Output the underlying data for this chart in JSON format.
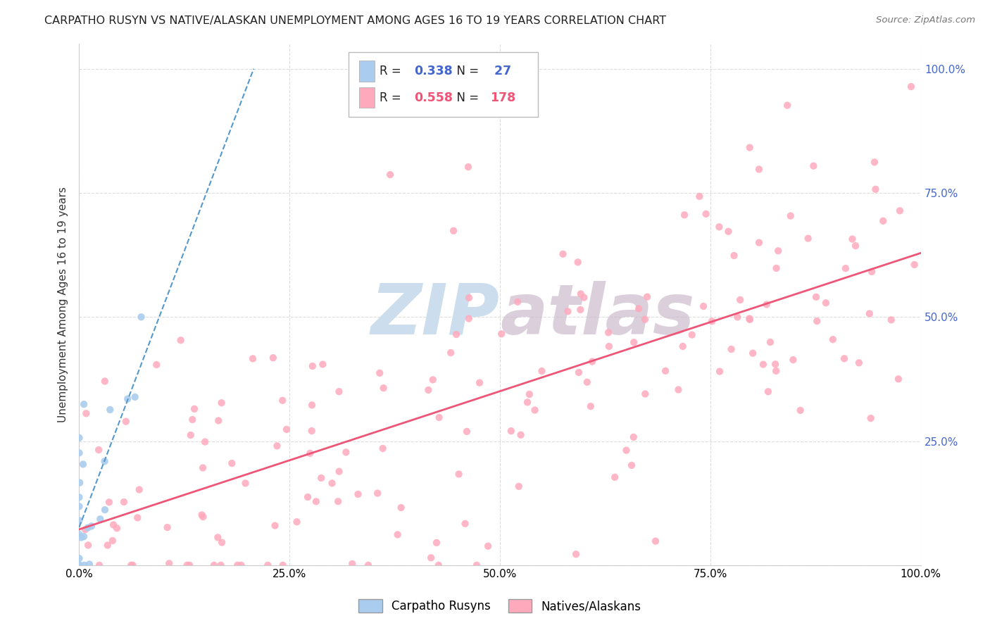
{
  "title": "CARPATHO RUSYN VS NATIVE/ALASKAN UNEMPLOYMENT AMONG AGES 16 TO 19 YEARS CORRELATION CHART",
  "source": "Source: ZipAtlas.com",
  "ylabel": "Unemployment Among Ages 16 to 19 years",
  "carpatho_R": 0.338,
  "carpatho_N": 27,
  "native_R": 0.558,
  "native_N": 178,
  "carpatho_color": "#aaccee",
  "native_color": "#ffaabc",
  "carpatho_line_color": "#5599cc",
  "native_line_color": "#ee5577",
  "right_axis_color": "#4466cc",
  "watermark_color": "#ccddee",
  "bg_color": "#FFFFFF",
  "grid_color": "#dddddd",
  "title_fontsize": 11.5,
  "axis_label_fontsize": 11,
  "tick_fontsize": 11
}
